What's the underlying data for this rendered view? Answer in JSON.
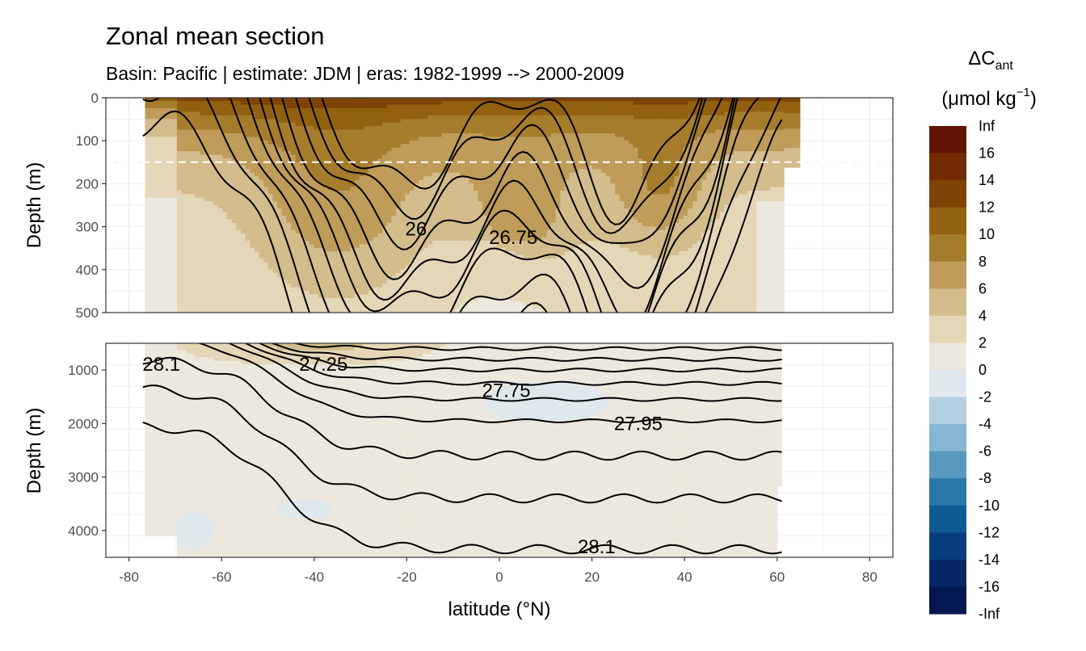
{
  "chart_data": {
    "type": "heatmap",
    "title": "Zonal mean section",
    "subtitle": "Basin: Pacific | estimate: JDM  | eras: 1982-1999 --> 2000-2009",
    "xlabel": "latitude (°N)",
    "ylabel": "Depth (m)",
    "xlim": [
      -85,
      85
    ],
    "x_ticks": [
      "-80",
      "-60",
      "-40",
      "-20",
      "0",
      "20",
      "40",
      "60",
      "80"
    ],
    "grid": true,
    "legend_placement": "right",
    "legend": {
      "title_main": "ΔC",
      "title_sub": "ant",
      "unit_open": "(μmol kg",
      "unit_sup": "−1",
      "unit_close": ")",
      "bin_colors": [
        "#611400",
        "#722b00",
        "#7f4205",
        "#92610f",
        "#a67d2d",
        "#bf9c5a",
        "#d3bd8c",
        "#e4d7b8",
        "#ede8dd",
        "#dfe8ed",
        "#b4d0e2",
        "#86b6d1",
        "#5799be",
        "#2977a6",
        "#0e5a93",
        "#083e7d",
        "#062767",
        "#041650"
      ],
      "labels": [
        "Inf",
        "16",
        "14",
        "12",
        "10",
        "8",
        "6",
        "4",
        "2",
        "0",
        "-2",
        "-4",
        "-6",
        "-8",
        "-10",
        "-12",
        "-14",
        "-16",
        "-Inf"
      ]
    },
    "panels": [
      {
        "name": "upper",
        "depth_range": [
          0,
          500
        ],
        "y_ticks": [
          "0",
          "100",
          "200",
          "300",
          "400",
          "500"
        ],
        "mixed_layer_reference_depth": 150,
        "isopycnal_labels": [
          {
            "text": "26",
            "lat": -18,
            "depth": 305
          },
          {
            "text": "26.75",
            "lat": 3,
            "depth": 325
          }
        ]
      },
      {
        "name": "lower",
        "depth_range": [
          500,
          4500
        ],
        "y_ticks": [
          "1000",
          "2000",
          "3000",
          "4000"
        ],
        "isopycnal_labels": [
          {
            "text": "28.1",
            "lat": -73,
            "depth": 890
          },
          {
            "text": "27.25",
            "lat": -38,
            "depth": 890
          },
          {
            "text": "27.75",
            "lat": 1.5,
            "depth": 1380
          },
          {
            "text": "27.95",
            "lat": 30,
            "depth": 2000
          },
          {
            "text": "28.1",
            "lat": 21,
            "depth": 4300
          }
        ]
      }
    ]
  }
}
